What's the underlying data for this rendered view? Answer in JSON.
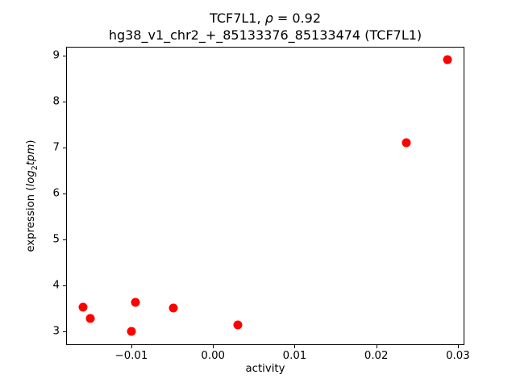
{
  "figure": {
    "title_line1": {
      "prefix": "TCF7L1, ",
      "rho": "ρ",
      "suffix": " = 0.92"
    },
    "title_line2": "hg38_v1_chr2_+_85133376_85133474 (TCF7L1)",
    "xlabel": "activity",
    "ylabel_parts": {
      "prefix": "expression (",
      "log": "log",
      "sub": "2",
      "tpm": "tpm",
      "close": ")"
    }
  },
  "chart_data": {
    "type": "scatter",
    "title": "TCF7L1, ρ = 0.92",
    "subtitle": "hg38_v1_chr2_+_85133376_85133474 (TCF7L1)",
    "xlabel": "activity",
    "ylabel": "expression (log2 tpm)",
    "xlim": [
      -0.018,
      0.0308
    ],
    "ylim": [
      2.7,
      9.2
    ],
    "xticks": [
      -0.01,
      0.0,
      0.01,
      0.02,
      0.03
    ],
    "yticks": [
      3,
      4,
      5,
      6,
      7,
      8,
      9
    ],
    "grid": false,
    "legend": null,
    "marker_color": "#ff0000",
    "points": [
      {
        "x": -0.016,
        "y": 3.55
      },
      {
        "x": -0.0151,
        "y": 3.29
      },
      {
        "x": -0.0096,
        "y": 3.65
      },
      {
        "x": -0.0101,
        "y": 3.01
      },
      {
        "x": -0.005,
        "y": 3.53
      },
      {
        "x": 0.0029,
        "y": 3.16
      },
      {
        "x": 0.0236,
        "y": 7.12
      },
      {
        "x": 0.0286,
        "y": 8.93
      }
    ]
  }
}
